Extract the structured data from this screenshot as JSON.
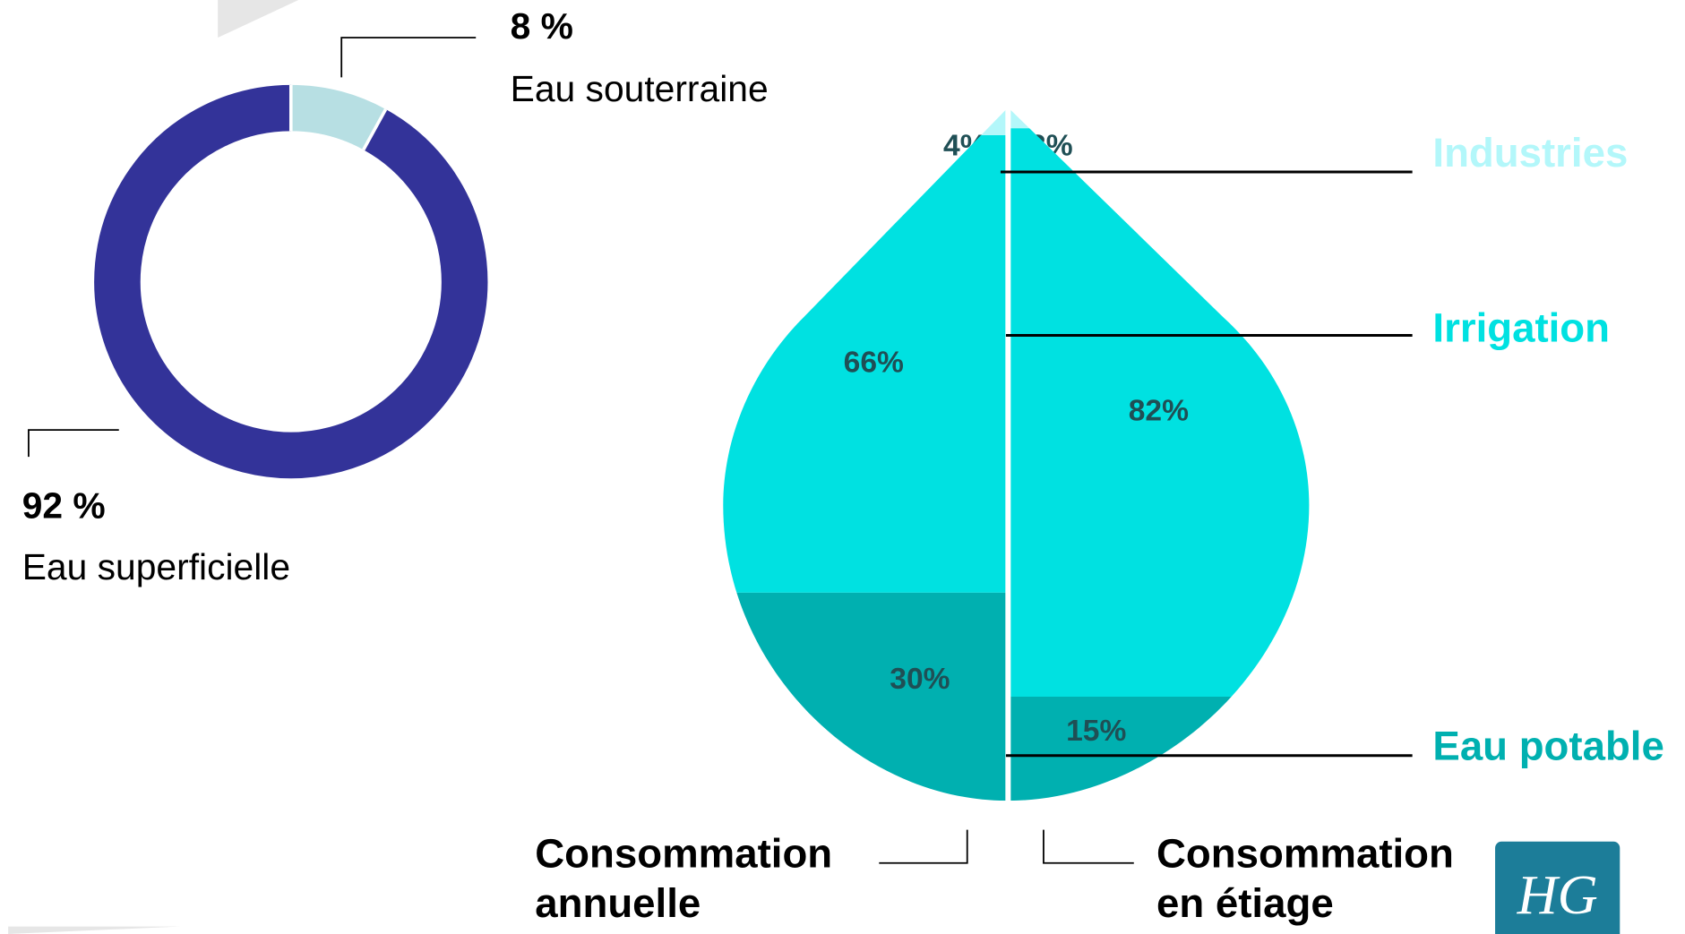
{
  "chart_data": [
    {
      "type": "donut",
      "categories": [
        "Eau souterraine",
        "Eau superficielle"
      ],
      "values": [
        8,
        92
      ],
      "value_labels": [
        "8 %",
        "92 %"
      ],
      "colors": [
        "#b7dfe3",
        "#333399"
      ]
    },
    {
      "type": "drop",
      "categories": [
        "Consommation annuelle",
        "Consommation en étiage"
      ],
      "series": [
        {
          "name": "Industries",
          "color": "#b3f7fa",
          "values": [
            4,
            3
          ],
          "value_labels": [
            "4%",
            "3%"
          ]
        },
        {
          "name": "Irrigation",
          "color": "#00e1e1",
          "values": [
            66,
            82
          ],
          "value_labels": [
            "66%",
            "82%"
          ]
        },
        {
          "name": "Eau potable",
          "color": "#00b0b0",
          "values": [
            30,
            15
          ],
          "value_labels": [
            "30%",
            "15%"
          ]
        }
      ]
    }
  ]
}
